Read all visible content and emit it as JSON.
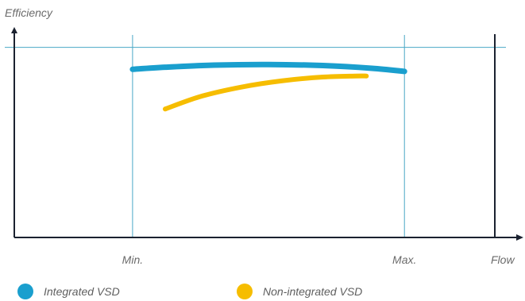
{
  "chart_data": {
    "type": "line",
    "ylabel": "Efficiency",
    "xlabel": "Flow",
    "x_tick_labels": [
      {
        "label": "Min.",
        "x": 0
      },
      {
        "label": "Max.",
        "x": 1
      }
    ],
    "xlim": [
      -0.435,
      1.385
    ],
    "ylim": [
      0,
      1
    ],
    "reference_line_y": 0.91,
    "series": [
      {
        "name": "Integrated VSD",
        "color": "#1a9fce",
        "x": [
          0,
          0.12,
          0.3,
          0.5,
          0.7,
          0.88,
          1.0
        ],
        "y": [
          0.805,
          0.815,
          0.825,
          0.828,
          0.823,
          0.81,
          0.795
        ]
      },
      {
        "name": "Non-integrated VSD",
        "color": "#f6bd00",
        "x": [
          0.12,
          0.25,
          0.4,
          0.55,
          0.7,
          0.82,
          0.86
        ],
        "y": [
          0.615,
          0.675,
          0.72,
          0.75,
          0.768,
          0.773,
          0.773
        ]
      }
    ],
    "grid": true,
    "legend_position": "bottom"
  },
  "colors": {
    "axis": "#1b2230",
    "grid": "#4aa7c6",
    "text": "#6b6b6b"
  }
}
